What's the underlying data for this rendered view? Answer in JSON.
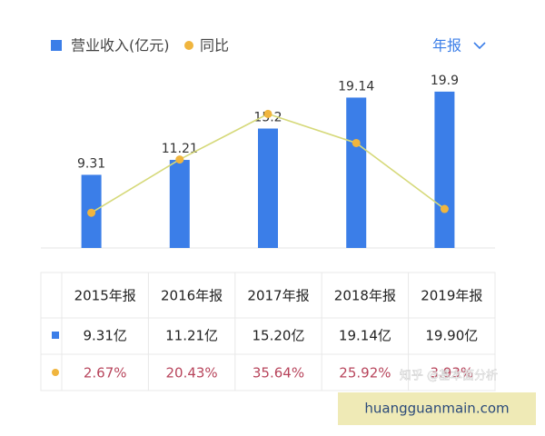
{
  "chart_data": {
    "type": "bar",
    "categories": [
      "2015年报",
      "2016年报",
      "2017年报",
      "2018年报",
      "2019年报"
    ],
    "series": [
      {
        "name": "营业收入(亿元)",
        "type": "bar",
        "color": "#3b7ee8",
        "values": [
          9.31,
          11.21,
          15.2,
          19.14,
          19.9
        ]
      },
      {
        "name": "同比",
        "type": "line",
        "axis": "y2",
        "color": "#f0b53e",
        "line_color": "#d6d97a",
        "values": [
          2.67,
          20.43,
          35.64,
          25.92,
          3.93
        ]
      }
    ],
    "ylim": [
      0,
      20
    ],
    "y2lim": [
      0,
      40
    ],
    "grid": false
  },
  "selector": "年报",
  "table": {
    "rows": [
      [
        "9.31亿",
        "11.21亿",
        "15.20亿",
        "19.14亿",
        "19.90亿"
      ],
      [
        "2.67%",
        "20.43%",
        "35.64%",
        "25.92%",
        "3.93%"
      ]
    ]
  },
  "watermark": "知乎 @基本面分析",
  "overlay": "huangguanmain.com"
}
